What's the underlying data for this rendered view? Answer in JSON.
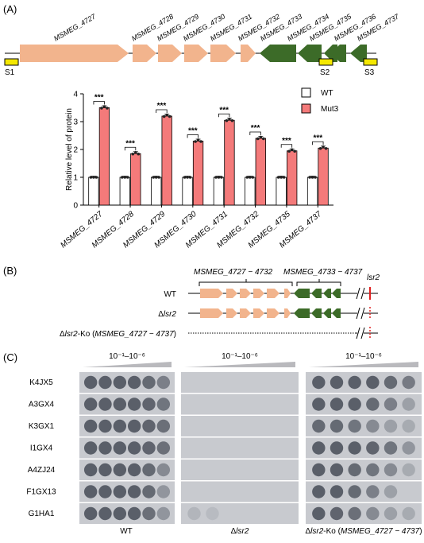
{
  "panel_a": {
    "label": "(A)",
    "genes": [
      "MSMEG_4727",
      "MSMEG_4728",
      "MSMEG_4729",
      "MSMEG_4730",
      "MSMEG_4731",
      "MSMEG_4732",
      "MSMEG_4733",
      "MSMEG_4734",
      "MSMEG_4735",
      "MSMEG_4736",
      "MSMEG_4737"
    ],
    "sites": [
      "S1",
      "S2",
      "S3"
    ],
    "colors": {
      "forward": "#f2b48d",
      "reverse": "#3c6b28",
      "site": "#f4e800",
      "wt": "#ffffff",
      "mut": "#f47a7a"
    }
  },
  "chart_data": {
    "type": "bar",
    "categories": [
      "MSMEG_4727",
      "MSMEG_4728",
      "MSMEG_4729",
      "MSMEG_4730",
      "MSMEG_4731",
      "MSMEG_4732",
      "MSMEG_4735",
      "MSMEG_4737"
    ],
    "series": [
      {
        "name": "WT",
        "values": [
          1,
          1,
          1,
          1,
          1,
          1,
          1,
          1
        ]
      },
      {
        "name": "Mut3",
        "values": [
          3.5,
          1.85,
          3.2,
          2.3,
          3.05,
          2.4,
          1.95,
          2.05
        ]
      }
    ],
    "ylabel": "Relative level of protein",
    "ylim": [
      0,
      4
    ],
    "yticks": [
      "0",
      "1",
      "2",
      "3",
      "4"
    ],
    "significance": [
      "***",
      "***",
      "***",
      "***",
      "***",
      "***",
      "***",
      "***"
    ],
    "legend_position": "top-right"
  },
  "panel_b": {
    "label": "(B)",
    "group_left": "MSMEG_4727 − 4732",
    "group_right": "MSMEG_4733 − 4737",
    "gene_label": "lsr2",
    "rows": [
      {
        "prefix": "WT",
        "italic": "",
        "suffix": ""
      },
      {
        "prefix": "Δ",
        "italic": "lsr2",
        "suffix": ""
      },
      {
        "prefix": "Δ",
        "italic": "lsr2",
        "suffix": "-Ko (",
        "italic2": "MSMEG_4727 − 4737",
        "end": ")"
      }
    ]
  },
  "panel_c": {
    "label": "(C)",
    "dilution": "10⁻¹–10⁻⁶",
    "phages": [
      "K4JX5",
      "A3GX4",
      "K3GX1",
      "I1GX4",
      "A4ZJ24",
      "F1GX13",
      "G1HA1"
    ],
    "strains": [
      {
        "prefix": "WT",
        "italic": "",
        "suffix": "",
        "italic2": "",
        "end": ""
      },
      {
        "prefix": "Δ",
        "italic": "lsr2",
        "suffix": "",
        "italic2": "",
        "end": ""
      },
      {
        "prefix": "Δ",
        "italic": "lsr2",
        "suffix": "-Ko (",
        "italic2": "MSMEG_4727 − 4737",
        "end": ")"
      }
    ]
  }
}
